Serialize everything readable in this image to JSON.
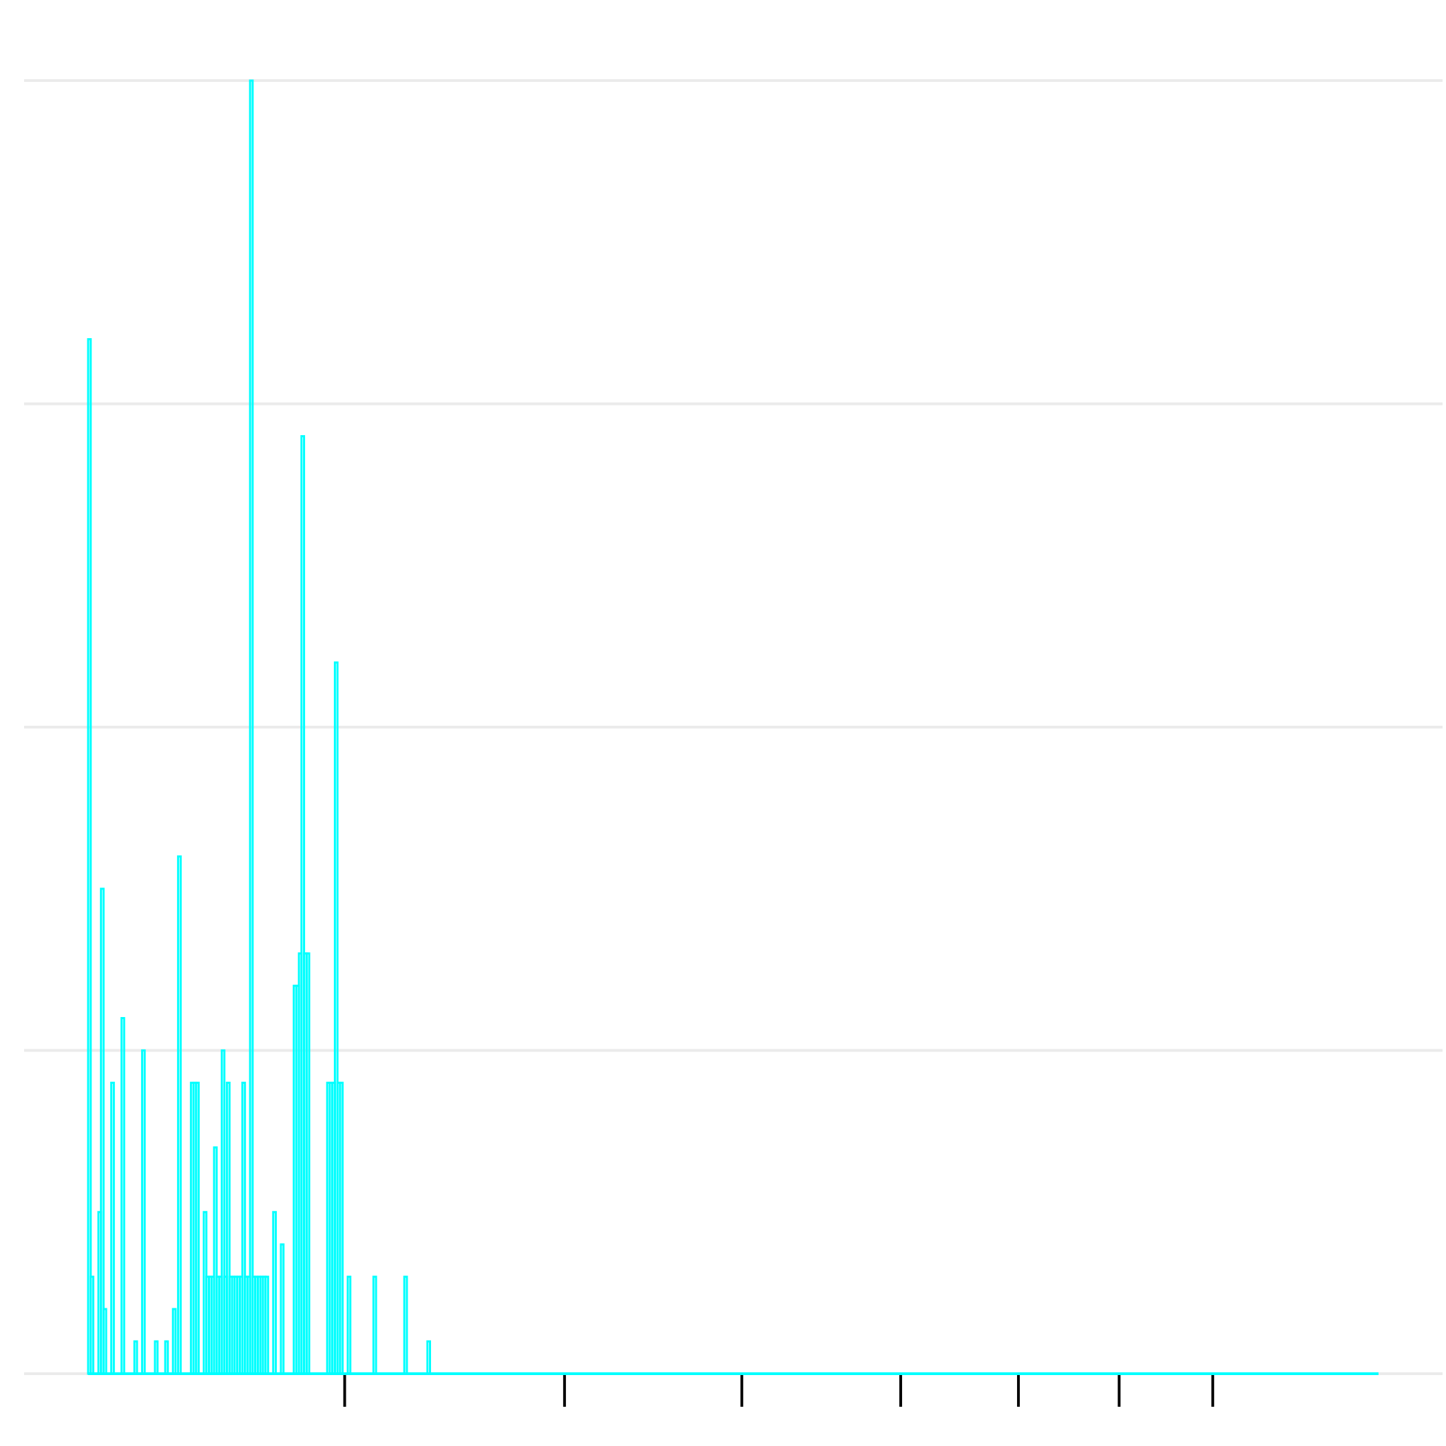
{
  "chart_data": {
    "type": "bar",
    "title": "",
    "xlabel": "",
    "ylabel": "",
    "ylim": [
      0,
      4
    ],
    "y_gridlines": [
      0,
      1,
      2,
      3,
      4
    ],
    "grid": "horizontal only",
    "legend": "none",
    "bar_color": "#00ffff",
    "gridline_color": "#ebebeb",
    "tick_color": "#000000",
    "x_tick_fractions": [
      0.226,
      0.381,
      0.506,
      0.618,
      0.701,
      0.772,
      0.838
    ],
    "series": [
      {
        "values": [
          3.2,
          0.3,
          0.0,
          0.0,
          0.5,
          1.5,
          0.2,
          0.0,
          0.0,
          0.9,
          0.0,
          0.0,
          0.0,
          1.1,
          0.0,
          0.0,
          0.0,
          0.0,
          0.1,
          0.0,
          0.0,
          1.0,
          0.0,
          0.0,
          0.0,
          0.0,
          0.1,
          0.0,
          0.0,
          0.0,
          0.1,
          0.0,
          0.0,
          0.2,
          0.0,
          1.6,
          0.0,
          0.0,
          0.0,
          0.0,
          0.9,
          0.9,
          0.9,
          0.0,
          0.0,
          0.5,
          0.3,
          0.3,
          0.3,
          0.7,
          0.3,
          0.3,
          1.0,
          0.3,
          0.9,
          0.3,
          0.3,
          0.3,
          0.3,
          0.3,
          0.9,
          0.3,
          0.3,
          4.0,
          0.3,
          0.3,
          0.3,
          0.3,
          0.3,
          0.3,
          0.0,
          0.0,
          0.5,
          0.0,
          0.0,
          0.4,
          0.0,
          0.0,
          0.0,
          0.0,
          1.2,
          1.2,
          1.3,
          2.9,
          1.3,
          1.3,
          0.0,
          0.0,
          0.0,
          0.0,
          0.0,
          0.0,
          0.0,
          0.9,
          0.9,
          0.9,
          2.2,
          0.9,
          0.9,
          0.0,
          0.0,
          0.3,
          0.0,
          0.0,
          0.0,
          0.0,
          0.0,
          0.0,
          0.0,
          0.0,
          0.0,
          0.3,
          0.0,
          0.0,
          0.0,
          0.0,
          0.0,
          0.0,
          0.0,
          0.0,
          0.0,
          0.0,
          0.0,
          0.3,
          0.0,
          0.0,
          0.0,
          0.0,
          0.0,
          0.0,
          0.0,
          0.0,
          0.1,
          0.0,
          0.0,
          0.0,
          0.0,
          0.0,
          0.0,
          0.0,
          0.0,
          0.0,
          0.0,
          0.0,
          0.0,
          0.0,
          0.0,
          0.0,
          0.0,
          0.0,
          0.0,
          0.0,
          0.0,
          0.0,
          0.0,
          0.0,
          0.0,
          0.0,
          0.0,
          0.0,
          0.0,
          0.0,
          0.0,
          0.0,
          0.0,
          0.0,
          0.0,
          0.0,
          0.0,
          0.0,
          0.0,
          0.0,
          0.0,
          0.0,
          0.0,
          0.0,
          0.0,
          0.0,
          0.0,
          0.0,
          0.0,
          0.0,
          0.0,
          0.0,
          0.0,
          0.0,
          0.0,
          0.0,
          0.0,
          0.0,
          0.0,
          0.0,
          0.0,
          0.0,
          0.0,
          0.0,
          0.0,
          0.0,
          0.0,
          0.0,
          0.0,
          0.0,
          0.0,
          0.0,
          0.0,
          0.0,
          0.0,
          0.0,
          0.0,
          0.0,
          0.0,
          0.0,
          0.0,
          0.0,
          0.0,
          0.0,
          0.0,
          0.0,
          0.0,
          0.0,
          0.0,
          0.0,
          0.0,
          0.0,
          0.0,
          0.0,
          0.0,
          0.0,
          0.0,
          0.0,
          0.0,
          0.0,
          0.0,
          0.0,
          0.0,
          0.0,
          0.0,
          0.0,
          0.0,
          0.0,
          0.0,
          0.0,
          0.0,
          0.0,
          0.0,
          0.0,
          0.0,
          0.0,
          0.0,
          0.0,
          0.0,
          0.0,
          0.0,
          0.0,
          0.0,
          0.0,
          0.0,
          0.0,
          0.0,
          0.0,
          0.0,
          0.0,
          0.0,
          0.0,
          0.0,
          0.0,
          0.0,
          0.0,
          0.0,
          0.0,
          0.0,
          0.0,
          0.0,
          0.0,
          0.0,
          0.0,
          0.0,
          0.0,
          0.0,
          0.0,
          0.0,
          0.0,
          0.0,
          0.0,
          0.0,
          0.0,
          0.0,
          0.0,
          0.0,
          0.0,
          0.0,
          0.0,
          0.0,
          0.0,
          0.0,
          0.0,
          0.0,
          0.0,
          0.0,
          0.0,
          0.0,
          0.0,
          0.0,
          0.0,
          0.0,
          0.0,
          0.0,
          0.0,
          0.0,
          0.0,
          0.0,
          0.0,
          0.0,
          0.0,
          0.0,
          0.0,
          0.0,
          0.0,
          0.0,
          0.0,
          0.0,
          0.0,
          0.0,
          0.0,
          0.0,
          0.0,
          0.0,
          0.0,
          0.0,
          0.0,
          0.0,
          0.0,
          0.0,
          0.0,
          0.0,
          0.0,
          0.0,
          0.0,
          0.0,
          0.0,
          0.0,
          0.0,
          0.0,
          0.0,
          0.0,
          0.0,
          0.0,
          0.0,
          0.0,
          0.0,
          0.0,
          0.0,
          0.0,
          0.0,
          0.0,
          0.0,
          0.0,
          0.0,
          0.0,
          0.0,
          0.0,
          0.0,
          0.0,
          0.0,
          0.0,
          0.0,
          0.0,
          0.0,
          0.0,
          0.0,
          0.0,
          0.0,
          0.0,
          0.0,
          0.0,
          0.0,
          0.0,
          0.0,
          0.0,
          0.0,
          0.0,
          0.0,
          0.0,
          0.0,
          0.0,
          0.0,
          0.0,
          0.0,
          0.0,
          0.0,
          0.0,
          0.0,
          0.0,
          0.0,
          0.0,
          0.0,
          0.0,
          0.0,
          0.0,
          0.0,
          0.0,
          0.0,
          0.0,
          0.0,
          0.0,
          0.0,
          0.0,
          0.0,
          0.0,
          0.0,
          0.0,
          0.0,
          0.0,
          0.0,
          0.0,
          0.0,
          0.0,
          0.0,
          0.0,
          0.0,
          0.0,
          0.0,
          0.0,
          0.0,
          0.0,
          0.0,
          0.0,
          0.0,
          0.0,
          0.0,
          0.0,
          0.0,
          0.0,
          0.0,
          0.0,
          0.0,
          0.0,
          0.0,
          0.0,
          0.0,
          0.0,
          0.0,
          0.0,
          0.0,
          0.0,
          0.0,
          0.0,
          0.0,
          0.0,
          0.0,
          0.0,
          0.0,
          0.0,
          0.0,
          0.0,
          0.0,
          0.0,
          0.0,
          0.0,
          0.0,
          0.0,
          0.0,
          0.0,
          0.0,
          0.0,
          0.0,
          0.0,
          0.0,
          0.0,
          0.0,
          0.0,
          0.0,
          0.0,
          0.0,
          0.0,
          0.0,
          0.0,
          0.0,
          0.0,
          0.0,
          0.0,
          0.0,
          0.0,
          0.0,
          0.0,
          0.0,
          0.0,
          0.0,
          0.0,
          0.0,
          0.0,
          0.0,
          0.0,
          0.0,
          0.0,
          0.0,
          0.0,
          0.0,
          0.0,
          0.0,
          0.0,
          0.0
        ]
      }
    ]
  }
}
